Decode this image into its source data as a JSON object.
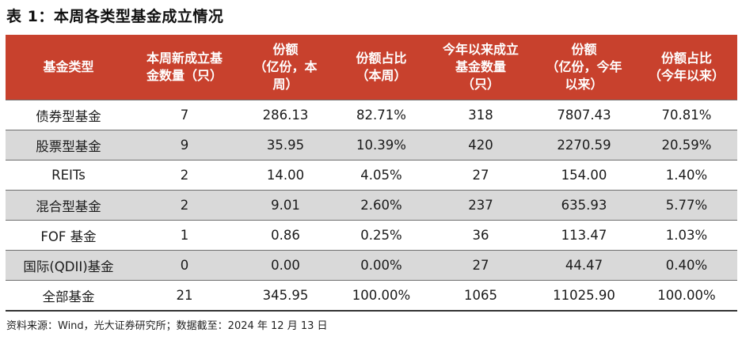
{
  "title": "表 1：本周各类型基金成立情况",
  "headers": [
    [
      "基金类型"
    ],
    [
      "本周新成立基",
      "金数量（只）"
    ],
    [
      "份额",
      "（亿份，本",
      "周）"
    ],
    [
      "份额占比",
      "（本周）"
    ],
    [
      "今年以来成立",
      "基金数量",
      "（只）"
    ],
    [
      "份额",
      "（亿份，今年",
      "以来）"
    ],
    [
      "份额占比",
      "（今年以来）"
    ]
  ],
  "rows": [
    [
      "债券型基金",
      "7",
      "286.13",
      "82.71%",
      "318",
      "7807.43",
      "70.81%"
    ],
    [
      "股票型基金",
      "9",
      "35.95",
      "10.39%",
      "420",
      "2270.59",
      "20.59%"
    ],
    [
      "REITs",
      "2",
      "14.00",
      "4.05%",
      "27",
      "154.00",
      "1.40%"
    ],
    [
      "混合型基金",
      "2",
      "9.01",
      "2.60%",
      "237",
      "635.93",
      "5.77%"
    ],
    [
      "FOF 基金",
      "1",
      "0.86",
      "0.25%",
      "36",
      "113.47",
      "1.03%"
    ],
    [
      "国际(QDII)基金",
      "0",
      "0.00",
      "0.00%",
      "27",
      "44.47",
      "0.40%"
    ],
    [
      "全部基金",
      "21",
      "345.95",
      "100.00%",
      "1065",
      "11025.90",
      "100.00%"
    ]
  ],
  "source": "资料来源：Wind，光大证券研究所；数据截至：2024 年 12 月 13 日",
  "colors": {
    "header_bg": "#c8412d",
    "header_text": "#ffffff",
    "shade_row": "#d9d9d9"
  }
}
